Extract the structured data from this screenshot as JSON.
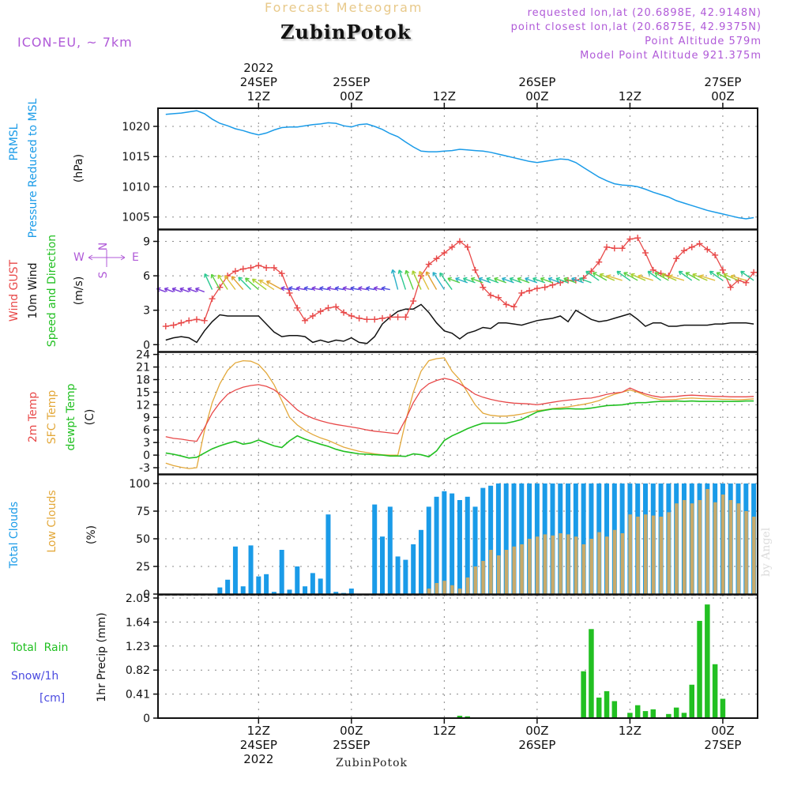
{
  "header": {
    "title": "Forecast Meteogram",
    "location": "ZubinPotok",
    "model": "ICON-EU, ~ 7km",
    "requested": "requested lon,lat (20.6898E, 42.9148N)",
    "closest": "point closest lon,lat (20.6875E, 42.9375N)",
    "point_altitude": "Point Altitude 579m",
    "model_altitude": "Model Point Altitude 921.375m",
    "footer": "ZubinPotok",
    "watermark": "by Angel"
  },
  "colors": {
    "pressure": "#1a9be8",
    "gust": "#e84848",
    "wind": "#111111",
    "green": "#22c022",
    "sfc": "#e3a83a",
    "total_clouds": "#1a9be8",
    "low_clouds": "#c8aa6a",
    "snow": "#4a4ae0",
    "purple": "#b05ad8"
  },
  "time_axis": {
    "top": [
      {
        "t": 12,
        "lines": [
          "2022",
          "24SEP",
          "12Z"
        ]
      },
      {
        "t": 24,
        "lines": [
          "25SEP",
          "00Z"
        ]
      },
      {
        "t": 36,
        "lines": [
          "12Z"
        ]
      },
      {
        "t": 48,
        "lines": [
          "26SEP",
          "00Z"
        ]
      },
      {
        "t": 60,
        "lines": [
          "12Z"
        ]
      },
      {
        "t": 72,
        "lines": [
          "27SEP",
          "00Z"
        ]
      }
    ],
    "bottom": [
      {
        "t": 12,
        "lines": [
          "12Z",
          "24SEP",
          "2022"
        ]
      },
      {
        "t": 24,
        "lines": [
          "00Z",
          "25SEP"
        ]
      },
      {
        "t": 36,
        "lines": [
          "12Z"
        ]
      },
      {
        "t": 48,
        "lines": [
          "00Z",
          "26SEP"
        ]
      },
      {
        "t": 60,
        "lines": [
          "12Z"
        ]
      },
      {
        "t": 72,
        "lines": [
          "00Z",
          "27SEP"
        ]
      }
    ]
  },
  "chart_data": [
    {
      "type": "line",
      "id": "pressure",
      "title": "PRMSL Pressure Reduced to MSL",
      "ylabel": "(hPa)",
      "ylim": [
        1003,
        1023
      ],
      "yticks": [
        1005,
        1010,
        1015,
        1020
      ],
      "x": [
        0,
        1,
        2,
        3,
        4,
        5,
        6,
        7,
        8,
        9,
        10,
        11,
        12,
        13,
        14,
        15,
        16,
        17,
        18,
        19,
        20,
        21,
        22,
        23,
        24,
        25,
        26,
        27,
        28,
        29,
        30,
        31,
        32,
        33,
        34,
        35,
        36,
        37,
        38,
        39,
        40,
        41,
        42,
        43,
        44,
        45,
        46,
        47,
        48,
        49,
        50,
        51,
        52,
        53,
        54,
        55,
        56,
        57,
        58,
        59,
        60,
        61,
        62,
        63,
        64,
        65,
        66,
        67,
        68,
        69,
        70,
        71,
        72,
        73,
        74,
        75,
        76
      ],
      "series": [
        {
          "name": "PRMSL",
          "values": [
            1022,
            1022.1,
            1022.2,
            1022.4,
            1022.6,
            1022.1,
            1021.2,
            1020.5,
            1020.1,
            1019.6,
            1019.3,
            1018.9,
            1018.6,
            1018.9,
            1019.4,
            1019.8,
            1019.9,
            1019.9,
            1020.1,
            1020.3,
            1020.4,
            1020.6,
            1020.5,
            1020.1,
            1019.9,
            1020.3,
            1020.4,
            1020.0,
            1019.5,
            1018.8,
            1018.3,
            1017.4,
            1016.6,
            1015.9,
            1015.8,
            1015.8,
            1015.9,
            1016.0,
            1016.2,
            1016.1,
            1016.0,
            1015.9,
            1015.7,
            1015.4,
            1015.1,
            1014.8,
            1014.5,
            1014.2,
            1014.0,
            1014.2,
            1014.4,
            1014.6,
            1014.5,
            1014.0,
            1013.2,
            1012.4,
            1011.6,
            1011.0,
            1010.5,
            1010.3,
            1010.2,
            1010.0,
            1009.6,
            1009.1,
            1008.7,
            1008.3,
            1007.7,
            1007.3,
            1006.9,
            1006.5,
            1006.1,
            1005.8,
            1005.5,
            1005.2,
            1004.9,
            1004.7,
            1004.9
          ]
        }
      ]
    },
    {
      "type": "line",
      "id": "wind",
      "title": "Wind GUST / 10m Wind Speed and Direction",
      "ylabel": "(m/s)",
      "ylim": [
        -0.6,
        10
      ],
      "yticks": [
        0,
        3,
        6,
        9
      ],
      "compass": [
        "N",
        "W",
        "E",
        "S"
      ],
      "x": [
        0,
        1,
        2,
        3,
        4,
        5,
        6,
        7,
        8,
        9,
        10,
        11,
        12,
        13,
        14,
        15,
        16,
        17,
        18,
        19,
        20,
        21,
        22,
        23,
        24,
        25,
        26,
        27,
        28,
        29,
        30,
        31,
        32,
        33,
        34,
        35,
        36,
        37,
        38,
        39,
        40,
        41,
        42,
        43,
        44,
        45,
        46,
        47,
        48,
        49,
        50,
        51,
        52,
        53,
        54,
        55,
        56,
        57,
        58,
        59,
        60,
        61,
        62,
        63,
        64,
        65,
        66,
        67,
        68,
        69,
        70,
        71,
        72,
        73,
        74,
        75,
        76
      ],
      "series": [
        {
          "name": "Wind GUST",
          "values": [
            1.6,
            1.7,
            1.9,
            2.1,
            2.2,
            2.1,
            4.0,
            5.0,
            6.0,
            6.4,
            6.6,
            6.7,
            6.9,
            6.7,
            6.7,
            6.2,
            4.5,
            3.2,
            2.1,
            2.5,
            2.9,
            3.2,
            3.3,
            2.8,
            2.5,
            2.3,
            2.2,
            2.2,
            2.3,
            2.4,
            2.4,
            2.4,
            3.8,
            6.0,
            7.0,
            7.5,
            8.0,
            8.5,
            9.0,
            8.5,
            6.5,
            5.0,
            4.3,
            4.1,
            3.5,
            3.3,
            4.5,
            4.7,
            4.9,
            5.0,
            5.2,
            5.4,
            5.6,
            5.6,
            5.8,
            6.4,
            7.2,
            8.5,
            8.4,
            8.4,
            9.2,
            9.3,
            8.0,
            6.5,
            6.2,
            6.0,
            7.5,
            8.2,
            8.5,
            8.8,
            8.3,
            7.8,
            6.5,
            5.0,
            5.6,
            5.4,
            6.3
          ]
        },
        {
          "name": "10m Wind",
          "values": [
            0.4,
            0.6,
            0.7,
            0.6,
            0.2,
            1.2,
            2.0,
            2.6,
            2.5,
            2.5,
            2.5,
            2.5,
            2.5,
            1.8,
            1.1,
            0.7,
            0.8,
            0.8,
            0.7,
            0.2,
            0.4,
            0.2,
            0.4,
            0.3,
            0.6,
            0.2,
            0.1,
            0.7,
            1.8,
            2.4,
            2.9,
            3.1,
            3.1,
            3.5,
            2.8,
            1.9,
            1.2,
            1.0,
            0.5,
            1.0,
            1.2,
            1.5,
            1.4,
            1.9,
            1.9,
            1.8,
            1.7,
            1.9,
            2.1,
            2.2,
            2.3,
            2.5,
            2.0,
            3.0,
            2.6,
            2.2,
            2.0,
            2.1,
            2.3,
            2.5,
            2.7,
            2.2,
            1.6,
            1.9,
            1.9,
            1.6,
            1.6,
            1.7,
            1.7,
            1.7,
            1.7,
            1.8,
            1.8,
            1.9,
            1.9,
            1.9,
            1.8
          ]
        }
      ]
    },
    {
      "type": "line",
      "id": "temp",
      "title": "2m Temp / SFC Temp / dewpt Temp",
      "ylabel": "(C)",
      "ylim": [
        -4.5,
        24.5
      ],
      "yticks": [
        -3,
        0,
        3,
        6,
        9,
        12,
        15,
        18,
        21,
        24
      ],
      "x": [
        0,
        1,
        2,
        3,
        4,
        5,
        6,
        7,
        8,
        9,
        10,
        11,
        12,
        13,
        14,
        15,
        16,
        17,
        18,
        19,
        20,
        21,
        22,
        23,
        24,
        25,
        26,
        27,
        28,
        29,
        30,
        31,
        32,
        33,
        34,
        35,
        36,
        37,
        38,
        39,
        40,
        41,
        42,
        43,
        44,
        45,
        46,
        47,
        48,
        49,
        50,
        51,
        52,
        53,
        54,
        55,
        56,
        57,
        58,
        59,
        60,
        61,
        62,
        63,
        64,
        65,
        66,
        67,
        68,
        69,
        70,
        71,
        72,
        73,
        74,
        75,
        76
      ],
      "series": [
        {
          "name": "2m Temp",
          "values": [
            4.4,
            4.0,
            3.8,
            3.5,
            3.3,
            6.5,
            10.0,
            12.5,
            14.5,
            15.5,
            16.2,
            16.6,
            16.8,
            16.4,
            15.6,
            14.2,
            12.5,
            10.8,
            9.6,
            8.8,
            8.2,
            7.7,
            7.3,
            7.0,
            6.7,
            6.4,
            6.0,
            5.7,
            5.5,
            5.3,
            5.1,
            8.5,
            12.5,
            15.5,
            17.0,
            17.8,
            18.3,
            17.9,
            17.0,
            15.8,
            14.5,
            13.8,
            13.3,
            12.9,
            12.6,
            12.4,
            12.3,
            12.2,
            12.0,
            12.3,
            12.6,
            12.9,
            13.1,
            13.3,
            13.5,
            13.6,
            14.0,
            14.5,
            14.8,
            15.0,
            16.0,
            15.2,
            14.6,
            14.1,
            13.8,
            13.9,
            14.0,
            14.2,
            14.3,
            14.2,
            14.1,
            14.0,
            14.0,
            13.9,
            13.9,
            13.9,
            14.0
          ]
        },
        {
          "name": "SFC Temp",
          "values": [
            -1.9,
            -2.5,
            -2.9,
            -3.2,
            -3.0,
            5.8,
            12.5,
            17.0,
            20.2,
            22.0,
            22.5,
            22.4,
            21.6,
            19.6,
            16.8,
            13.0,
            9.0,
            7.2,
            5.9,
            4.9,
            4.1,
            3.5,
            2.7,
            1.9,
            1.4,
            0.9,
            0.6,
            0.3,
            0.1,
            0.0,
            0.0,
            8.0,
            15.0,
            20.0,
            22.5,
            23.0,
            23.2,
            20.0,
            18.0,
            15.0,
            12.0,
            10.0,
            9.5,
            9.3,
            9.3,
            9.5,
            9.8,
            10.2,
            10.6,
            10.8,
            11.1,
            11.3,
            11.5,
            11.8,
            12.1,
            12.5,
            13.0,
            13.8,
            14.5,
            15.0,
            15.5,
            15.0,
            14.2,
            13.6,
            13.2,
            13.2,
            13.3,
            13.5,
            13.6,
            13.5,
            13.4,
            13.4,
            13.3,
            13.3,
            13.2,
            13.3,
            13.4
          ]
        },
        {
          "name": "dewpt Temp",
          "values": [
            0.5,
            0.2,
            -0.2,
            -0.7,
            -0.5,
            0.5,
            1.5,
            2.2,
            2.8,
            3.3,
            2.6,
            2.9,
            3.6,
            2.9,
            2.2,
            1.8,
            3.4,
            4.6,
            3.8,
            3.2,
            2.6,
            2.1,
            1.4,
            0.9,
            0.6,
            0.3,
            0.2,
            0.1,
            0.0,
            -0.2,
            -0.2,
            -0.3,
            0.3,
            0.1,
            -0.4,
            1.0,
            3.5,
            4.6,
            5.4,
            6.3,
            7.0,
            7.6,
            7.6,
            7.6,
            7.6,
            8.0,
            8.5,
            9.4,
            10.3,
            10.7,
            11.0,
            11.0,
            11.1,
            11.0,
            11.0,
            11.2,
            11.5,
            11.8,
            11.9,
            12.0,
            12.3,
            12.5,
            12.5,
            12.7,
            12.8,
            12.8,
            12.9,
            12.8,
            12.9,
            12.8,
            12.8,
            12.8,
            12.8,
            12.8,
            12.8,
            12.9,
            12.9
          ]
        }
      ]
    },
    {
      "type": "bar",
      "id": "clouds",
      "title": "Total Clouds / Low Clouds",
      "ylabel": "(%)",
      "ylim": [
        0,
        100
      ],
      "yticks": [
        0,
        25,
        50,
        75,
        100
      ],
      "x": [
        0,
        1,
        2,
        3,
        4,
        5,
        6,
        7,
        8,
        9,
        10,
        11,
        12,
        13,
        14,
        15,
        16,
        17,
        18,
        19,
        20,
        21,
        22,
        23,
        24,
        25,
        26,
        27,
        28,
        29,
        30,
        31,
        32,
        33,
        34,
        35,
        36,
        37,
        38,
        39,
        40,
        41,
        42,
        43,
        44,
        45,
        46,
        47,
        48,
        49,
        50,
        51,
        52,
        53,
        54,
        55,
        56,
        57,
        58,
        59,
        60,
        61,
        62,
        63,
        64,
        65,
        66,
        67,
        68,
        69,
        70,
        71,
        72,
        73,
        74,
        75,
        76
      ],
      "series": [
        {
          "name": "Total Clouds",
          "values": [
            0,
            0,
            0,
            0,
            0,
            0,
            0,
            6,
            13,
            43,
            7,
            44,
            16,
            18,
            2,
            40,
            4,
            25,
            7,
            19,
            14,
            72,
            2,
            1,
            5,
            0,
            0,
            81,
            52,
            79,
            34,
            31,
            45,
            58,
            79,
            88,
            93,
            91,
            85,
            88,
            79,
            96,
            98,
            100,
            100,
            100,
            100,
            100,
            100,
            100,
            100,
            100,
            100,
            100,
            100,
            100,
            100,
            100,
            100,
            100,
            100,
            100,
            100,
            100,
            100,
            100,
            100,
            100,
            100,
            100,
            100,
            100,
            100,
            100,
            100,
            100,
            100
          ]
        },
        {
          "name": "Low Clouds",
          "values": [
            0,
            0,
            0,
            0,
            0,
            0,
            0,
            0,
            0,
            0,
            0,
            0,
            0,
            0,
            0,
            0,
            0,
            0,
            0,
            0,
            0,
            0,
            0,
            0,
            0,
            0,
            0,
            0,
            0,
            0,
            0,
            0,
            0,
            0,
            5,
            10,
            12,
            8,
            5,
            15,
            25,
            30,
            40,
            35,
            40,
            43,
            45,
            50,
            52,
            54,
            53,
            55,
            54,
            52,
            45,
            50,
            56,
            52,
            58,
            55,
            72,
            70,
            72,
            71,
            70,
            74,
            82,
            85,
            82,
            85,
            95,
            83,
            90,
            85,
            82,
            75,
            70
          ]
        }
      ]
    },
    {
      "type": "bar",
      "id": "precip",
      "title": "Total Rain / Snow/1h",
      "ylabel": "1hr Precip (mm)",
      "ylim": [
        0,
        2.05
      ],
      "yticks": [
        0,
        0.41,
        0.82,
        1.23,
        1.64,
        2.05
      ],
      "legend": [
        "Total  Rain",
        "Snow/1h",
        "[cm]"
      ],
      "x": [
        38,
        39,
        54,
        55,
        56,
        57,
        58,
        59,
        60,
        61,
        62,
        63,
        64,
        65,
        66,
        67,
        68,
        69,
        70,
        71,
        72,
        73,
        74
      ],
      "series": [
        {
          "name": "Total Rain",
          "values": [
            0.04,
            0.03,
            0.8,
            1.52,
            0.35,
            0.46,
            0.29,
            0.0,
            0.09,
            0.22,
            0.12,
            0.15,
            0.0,
            0.07,
            0.18,
            0.09,
            0.57,
            1.66,
            1.94,
            0.92,
            0.33,
            0.0,
            0.0
          ]
        }
      ]
    }
  ]
}
